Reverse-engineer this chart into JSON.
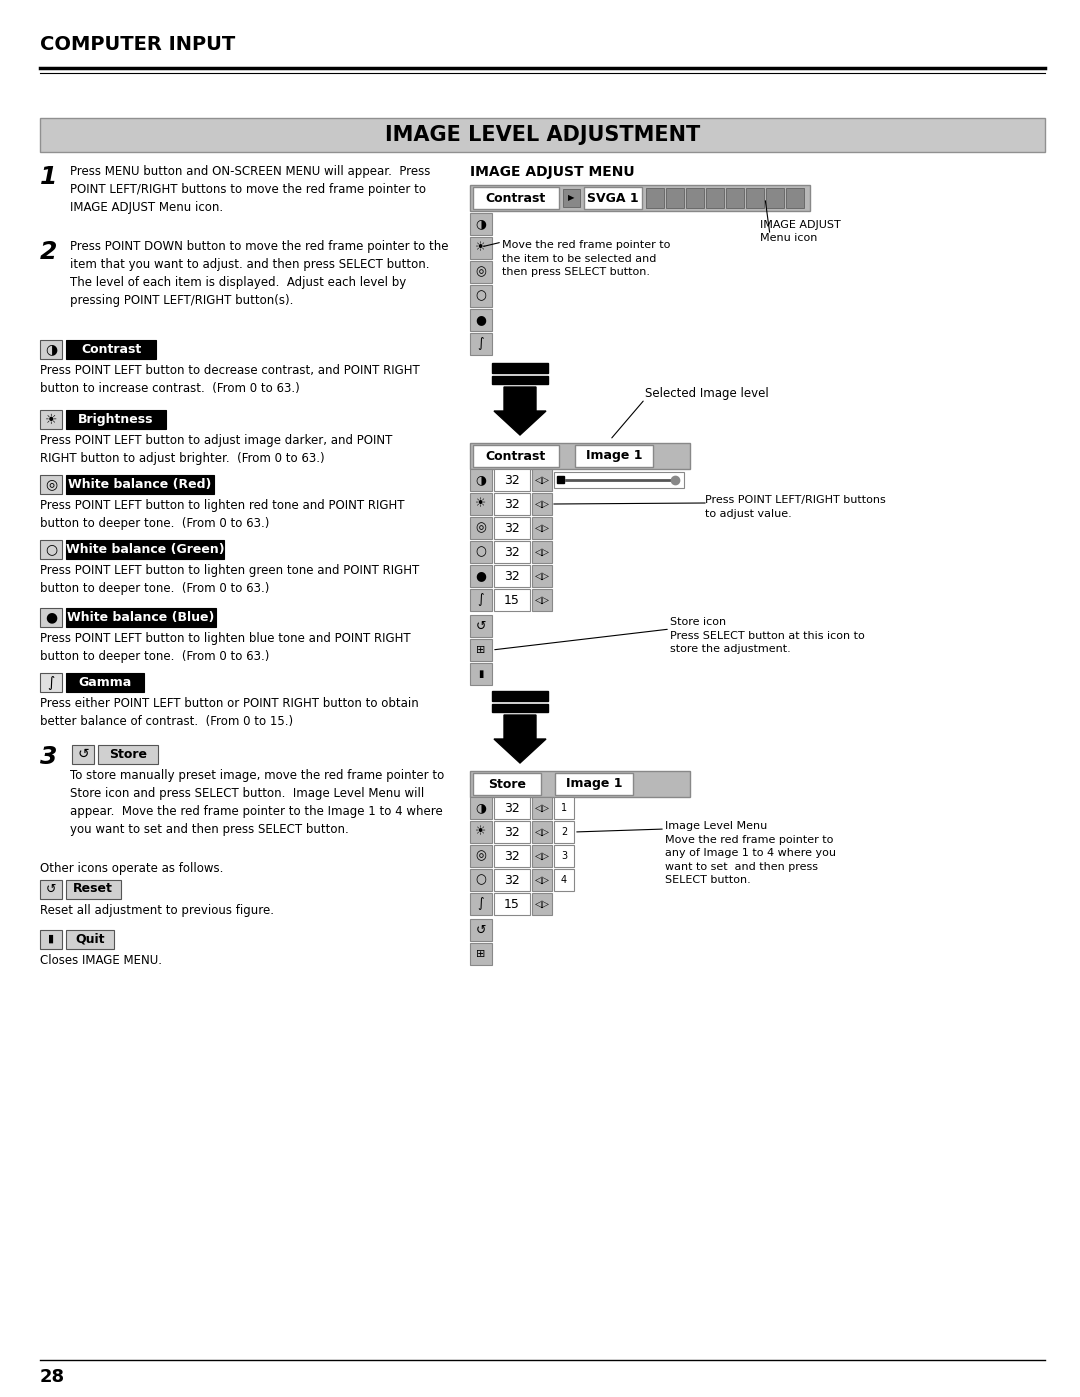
{
  "page_bg": "#ffffff",
  "header_title": "COMPUTER INPUT",
  "section_title": "IMAGE LEVEL ADJUSTMENT",
  "step1_num": "1",
  "step1_text": "Press MENU button and ON-SCREEN MENU will appear.  Press\nPOINT LEFT/RIGHT buttons to move the red frame pointer to\nIMAGE ADJUST Menu icon.",
  "step2_num": "2",
  "step2_text": "Press POINT DOWN button to move the red frame pointer to the\nitem that you want to adjust. and then press SELECT button.\nThe level of each item is displayed.  Adjust each level by\npressing POINT LEFT/RIGHT button(s).",
  "contrast_label": "Contrast",
  "contrast_text": "Press POINT LEFT button to decrease contrast, and POINT RIGHT\nbutton to increase contrast.  (From 0 to 63.)",
  "brightness_label": "Brightness",
  "brightness_text": "Press POINT LEFT button to adjust image darker, and POINT\nRIGHT button to adjust brighter.  (From 0 to 63.)",
  "wb_red_label": "White balance (Red)",
  "wb_red_text": "Press POINT LEFT button to lighten red tone and POINT RIGHT\nbutton to deeper tone.  (From 0 to 63.)",
  "wb_green_label": "White balance (Green)",
  "wb_green_text": "Press POINT LEFT button to lighten green tone and POINT RIGHT\nbutton to deeper tone.  (From 0 to 63.)",
  "wb_blue_label": "White balance (Blue)",
  "wb_blue_text": "Press POINT LEFT button to lighten blue tone and POINT RIGHT\nbutton to deeper tone.  (From 0 to 63.)",
  "gamma_label": "Gamma",
  "gamma_text": "Press either POINT LEFT button or POINT RIGHT button to obtain\nbetter balance of contrast.  (From 0 to 15.)",
  "step3_num": "3",
  "store_label": "Store",
  "step3_text": "To store manually preset image, move the red frame pointer to\nStore icon and press SELECT button.  Image Level Menu will\nappear.  Move the red frame pointer to the Image 1 to 4 where\nyou want to set and then press SELECT button.",
  "other_text": "Other icons operate as follows.",
  "reset_label": "Reset",
  "reset_text": "Reset all adjustment to previous figure.",
  "quit_label": "Quit",
  "quit_text": "Closes IMAGE MENU.",
  "page_num": "28",
  "menu_label": "IMAGE ADJUST MENU",
  "menu_note1": "Move the red frame pointer to\nthe item to be selected and\nthen press SELECT button.",
  "menu_note2": "IMAGE ADJUST\nMenu icon",
  "menu_note3": "Selected Image level",
  "menu_note4": "Press POINT LEFT/RIGHT buttons\nto adjust value.",
  "menu_note5": "Store icon\nPress SELECT button at this icon to\nstore the adjustment.",
  "menu_note6": "Image Level Menu\nMove the red frame pointer to\nany of Image 1 to 4 where you\nwant to set  and then press\nSELECT button."
}
